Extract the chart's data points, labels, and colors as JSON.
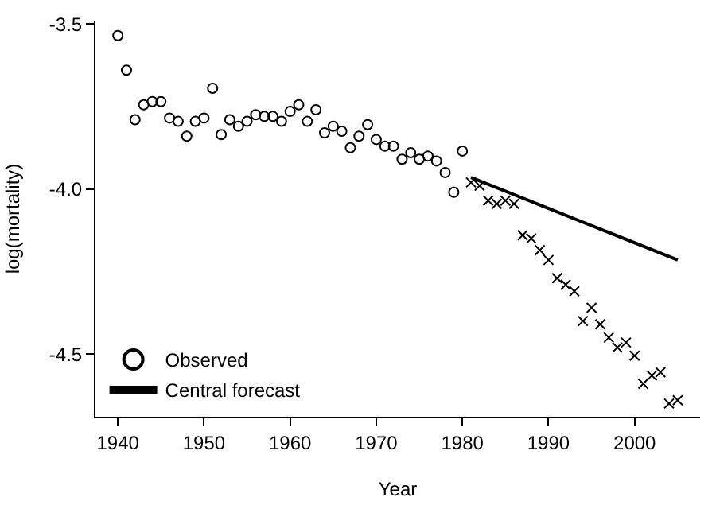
{
  "chart_data": {
    "type": "scatter",
    "xlabel": "Year",
    "ylabel": "log(mortality)",
    "xlim": [
      1937.4,
      2007.6
    ],
    "xticks": [
      1940,
      1950,
      1960,
      1970,
      1980,
      1990,
      2000
    ],
    "ylim": [
      -4.69,
      -3.49
    ],
    "yticks": [
      {
        "value": -3.5,
        "label": "-3.5"
      },
      {
        "value": -4.0,
        "label": "-4.0"
      },
      {
        "value": -4.5,
        "label": "-4.5"
      }
    ],
    "legend": "bottom left",
    "series": [
      {
        "name": "Observed",
        "marker": "circle",
        "color": "#000000",
        "x": [
          1940,
          1941,
          1942,
          1943,
          1944,
          1945,
          1946,
          1947,
          1948,
          1949,
          1950,
          1951,
          1952,
          1953,
          1954,
          1955,
          1956,
          1957,
          1958,
          1959,
          1960,
          1961,
          1962,
          1963,
          1964,
          1965,
          1966,
          1967,
          1968,
          1969,
          1970,
          1971,
          1972,
          1973,
          1974,
          1975,
          1976,
          1977,
          1978,
          1979,
          1980
        ],
        "values": [
          -3.535,
          -3.64,
          -3.79,
          -3.745,
          -3.735,
          -3.735,
          -3.785,
          -3.795,
          -3.84,
          -3.795,
          -3.785,
          -3.695,
          -3.835,
          -3.79,
          -3.81,
          -3.795,
          -3.775,
          -3.78,
          -3.78,
          -3.795,
          -3.765,
          -3.745,
          -3.795,
          -3.76,
          -3.83,
          -3.81,
          -3.825,
          -3.875,
          -3.84,
          -3.805,
          -3.85,
          -3.87,
          -3.87,
          -3.91,
          -3.89,
          -3.91,
          -3.9,
          -3.915,
          -3.95,
          -4.01,
          -3.885
        ]
      },
      {
        "marker": "cross",
        "color": "#000000",
        "x": [
          1981,
          1982,
          1983,
          1984,
          1985,
          1986,
          1987,
          1988,
          1989,
          1990,
          1991,
          1992,
          1993,
          1994,
          1995,
          1996,
          1997,
          1998,
          1999,
          2000,
          2001,
          2002,
          2003,
          2004,
          2005
        ],
        "values": [
          -3.98,
          -3.99,
          -4.035,
          -4.045,
          -4.035,
          -4.045,
          -4.14,
          -4.15,
          -4.185,
          -4.215,
          -4.27,
          -4.29,
          -4.31,
          -4.4,
          -4.36,
          -4.41,
          -4.45,
          -4.48,
          -4.465,
          -4.505,
          -4.59,
          -4.565,
          -4.555,
          -4.65,
          -4.64
        ]
      },
      {
        "name": "Central forecast",
        "type": "line",
        "marker": "none",
        "line_style": "solid",
        "color": "#000000",
        "x": [
          1981,
          2005
        ],
        "values": [
          -3.965,
          -4.215
        ]
      }
    ]
  }
}
